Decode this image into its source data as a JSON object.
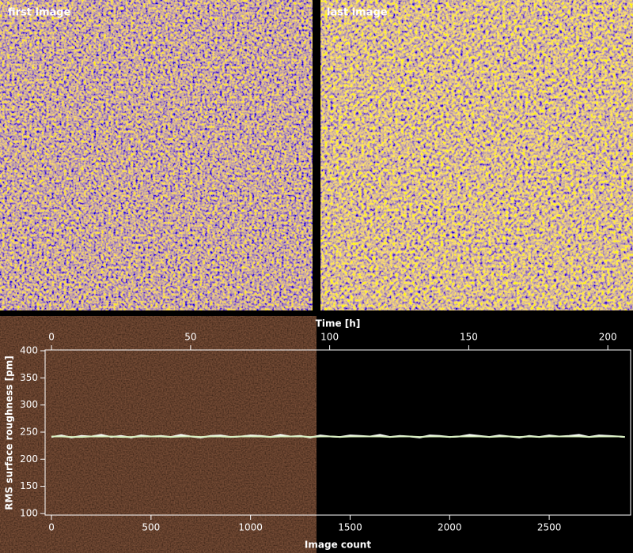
{
  "panels": [
    {
      "label": "first image"
    },
    {
      "label": "last image"
    }
  ],
  "chart_data": {
    "type": "line",
    "xlabel": "Image count",
    "ylabel": "RMS surface roughness [pm]",
    "x2label": "Time [h]",
    "xlim": [
      -32,
      2909
    ],
    "xticks": [
      0,
      500,
      1000,
      1500,
      2000,
      2500
    ],
    "x2lim": [
      -2.3,
      208.2
    ],
    "x2ticks": [
      0,
      50,
      100,
      150,
      200
    ],
    "ylim": [
      97,
      401.5
    ],
    "yticks": [
      100,
      150,
      200,
      250,
      300,
      350,
      400
    ],
    "x": [
      0,
      50,
      100,
      150,
      200,
      250,
      300,
      350,
      400,
      450,
      500,
      550,
      600,
      650,
      700,
      750,
      800,
      850,
      900,
      950,
      1000,
      1050,
      1100,
      1150,
      1200,
      1250,
      1300,
      1350,
      1400,
      1450,
      1500,
      1550,
      1600,
      1650,
      1700,
      1750,
      1800,
      1850,
      1900,
      1950,
      2000,
      2050,
      2100,
      2150,
      2200,
      2250,
      2300,
      2350,
      2400,
      2450,
      2500,
      2550,
      2600,
      2650,
      2700,
      2750,
      2800,
      2850,
      2880
    ],
    "series": [
      {
        "color": "#ffffff",
        "values": [
          241,
          244,
          240,
          243,
          242,
          245,
          241,
          243,
          240,
          244,
          242,
          243,
          241,
          245,
          242,
          240,
          243,
          244,
          241,
          242,
          244,
          243,
          241,
          245,
          242,
          243,
          240,
          244,
          242,
          241,
          244,
          243,
          242,
          245,
          241,
          243,
          242,
          240,
          244,
          243,
          241,
          242,
          245,
          243,
          241,
          244,
          242,
          240,
          243,
          241,
          244,
          242,
          243,
          245,
          241,
          244,
          243,
          242,
          241
        ]
      },
      {
        "color": "#d8f0c0",
        "values": [
          242,
          242,
          241,
          241,
          242,
          242,
          242,
          241,
          241,
          242,
          242,
          242,
          241,
          242,
          242,
          241,
          242,
          242,
          241,
          242,
          242,
          242,
          241,
          242,
          242,
          242,
          241,
          242,
          242,
          241,
          242,
          242,
          242,
          242,
          241,
          242,
          242,
          241,
          242,
          242,
          241,
          242,
          242,
          242,
          241,
          242,
          242,
          241,
          242,
          241,
          242,
          242,
          242,
          242,
          241,
          242,
          242,
          242,
          241
        ]
      }
    ]
  }
}
